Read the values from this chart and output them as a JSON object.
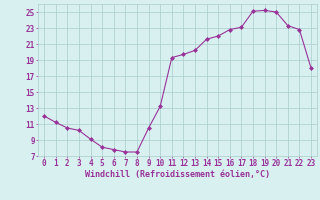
{
  "x": [
    0,
    1,
    2,
    3,
    4,
    5,
    6,
    7,
    8,
    9,
    10,
    11,
    12,
    13,
    14,
    15,
    16,
    17,
    18,
    19,
    20,
    21,
    22,
    23
  ],
  "y": [
    12.0,
    11.2,
    10.5,
    10.2,
    9.1,
    8.1,
    7.8,
    7.5,
    7.5,
    10.5,
    13.2,
    19.3,
    19.7,
    20.2,
    21.6,
    22.0,
    22.8,
    23.1,
    25.1,
    25.2,
    25.0,
    23.3,
    22.8,
    18.0
  ],
  "line_color": "#993399",
  "marker": "D",
  "marker_size": 2,
  "bg_color": "#d8f0f0",
  "grid_color": "#aacccc",
  "axis_color": "#993399",
  "tick_color": "#993399",
  "xlabel": "Windchill (Refroidissement éolien,°C)",
  "xlim": [
    -0.5,
    23.5
  ],
  "ylim": [
    7,
    26
  ],
  "yticks": [
    7,
    9,
    11,
    13,
    15,
    17,
    19,
    21,
    23,
    25
  ],
  "xticks": [
    0,
    1,
    2,
    3,
    4,
    5,
    6,
    7,
    8,
    9,
    10,
    11,
    12,
    13,
    14,
    15,
    16,
    17,
    18,
    19,
    20,
    21,
    22,
    23
  ],
  "font_size": 5.5,
  "xlabel_font_size": 6.0
}
